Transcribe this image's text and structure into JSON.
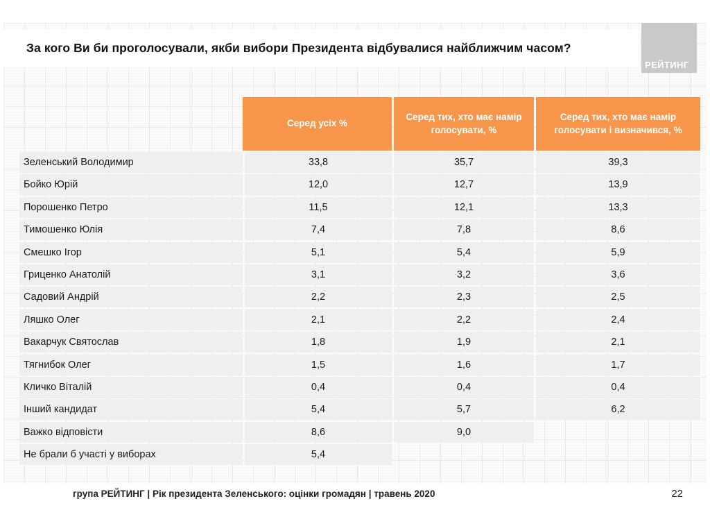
{
  "slide": {
    "title": "За кого Ви би проголосували, якби вибори Президента відбувалися найближчим часом?",
    "logo_text": "РЕЙТИНГ",
    "footer": "група РЕЙТИНГ |  Рік президента Зеленського: оцінки громадян | травень 2020",
    "page_number": "22"
  },
  "colors": {
    "accent_orange": "#f7964a",
    "row_gray": "#f0efef",
    "logo_gray": "#c9c9c9",
    "header_text": "#ffffff"
  },
  "chart_data": {
    "type": "table",
    "title": "За кого Ви би проголосували, якби вибори Президента відбувалися найближчим часом?",
    "columns": [
      "Серед усіх %",
      "Серед тих, хто має намір голосувати, %",
      "Серед тих, хто має намір голосувати і визначився, %"
    ],
    "rows": [
      {
        "name": "Зеленський Володимир",
        "values": [
          "33,8",
          "35,7",
          "39,3"
        ]
      },
      {
        "name": "Бойко Юрій",
        "values": [
          "12,0",
          "12,7",
          "13,9"
        ]
      },
      {
        "name": "Порошенко Петро",
        "values": [
          "11,5",
          "12,1",
          "13,3"
        ]
      },
      {
        "name": "Тимошенко Юлія",
        "values": [
          "7,4",
          "7,8",
          "8,6"
        ]
      },
      {
        "name": "Смешко Ігор",
        "values": [
          "5,1",
          "5,4",
          "5,9"
        ]
      },
      {
        "name": "Гриценко Анатолій",
        "values": [
          "3,1",
          "3,2",
          "3,6"
        ]
      },
      {
        "name": "Садовий Андрій",
        "values": [
          "2,2",
          "2,3",
          "2,5"
        ]
      },
      {
        "name": "Ляшко Олег",
        "values": [
          "2,1",
          "2,2",
          "2,4"
        ]
      },
      {
        "name": "Вакарчук Святослав",
        "values": [
          "1,8",
          "1,9",
          "2,1"
        ]
      },
      {
        "name": "Тягнибок Олег",
        "values": [
          "1,5",
          "1,6",
          "1,7"
        ]
      },
      {
        "name": "Кличко Віталій",
        "values": [
          "0,4",
          "0,4",
          "0,4"
        ]
      },
      {
        "name": "Інший кандидат",
        "values": [
          "5,4",
          "5,7",
          "6,2"
        ]
      },
      {
        "name": "Важко відповісти",
        "values": [
          "8,6",
          "9,0",
          null
        ]
      },
      {
        "name": "Не брали б участі у виборах",
        "values": [
          "5,4",
          null,
          null
        ]
      }
    ]
  }
}
